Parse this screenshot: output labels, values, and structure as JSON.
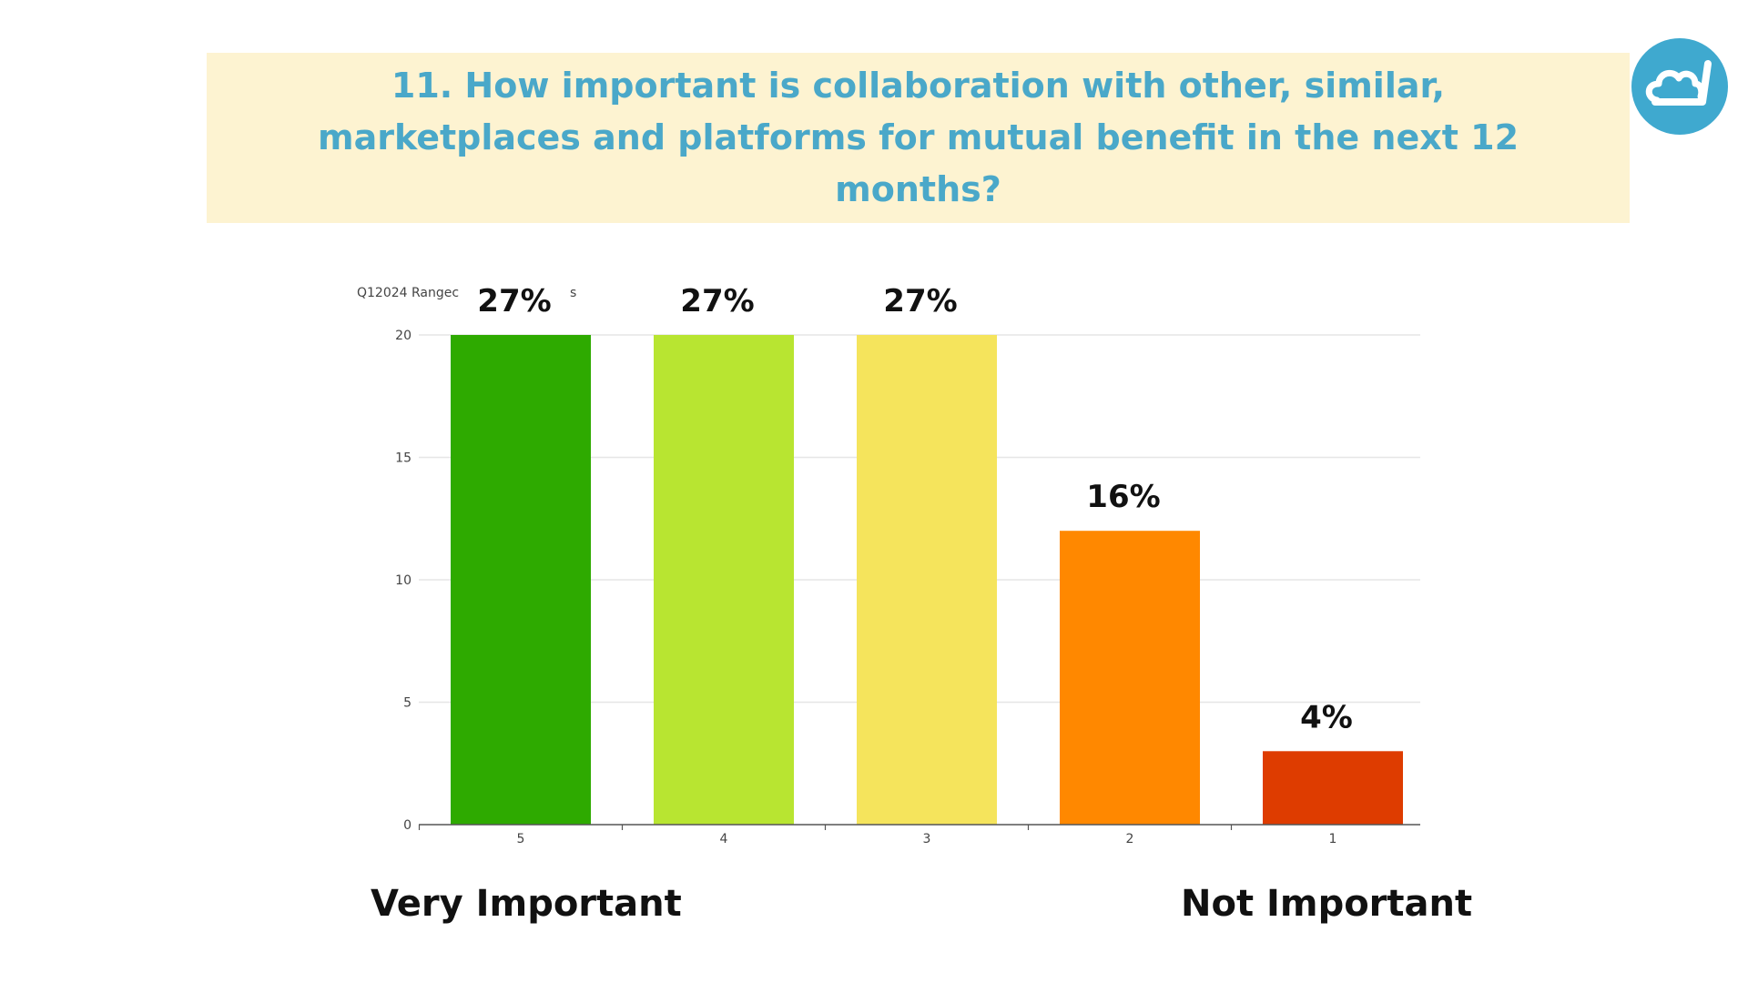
{
  "header": {
    "title": "11. How important is collaboration with other, similar, marketplaces and platforms for mutual benefit in the next 12 months?"
  },
  "logo": {
    "icon": "cloud-cart-icon",
    "color": "#3fa9cf"
  },
  "chart_data": {
    "type": "bar",
    "source_label": "Q12024 Rangec",
    "source_label_fragment": "s",
    "categories": [
      "5",
      "4",
      "3",
      "2",
      "1"
    ],
    "values": [
      20,
      20,
      20,
      12,
      3
    ],
    "data_labels": [
      "27%",
      "27%",
      "27%",
      "16%",
      "4%"
    ],
    "colors": [
      "#2eaa00",
      "#b8e531",
      "#f5e45c",
      "#ff8800",
      "#de3c00"
    ],
    "ylim": [
      0,
      20
    ],
    "yticks": [
      0,
      5,
      10,
      15,
      20
    ],
    "grid": true,
    "xlabel": "",
    "ylabel": ""
  },
  "scale_labels": {
    "left": "Very Important",
    "right": "Not Important"
  }
}
